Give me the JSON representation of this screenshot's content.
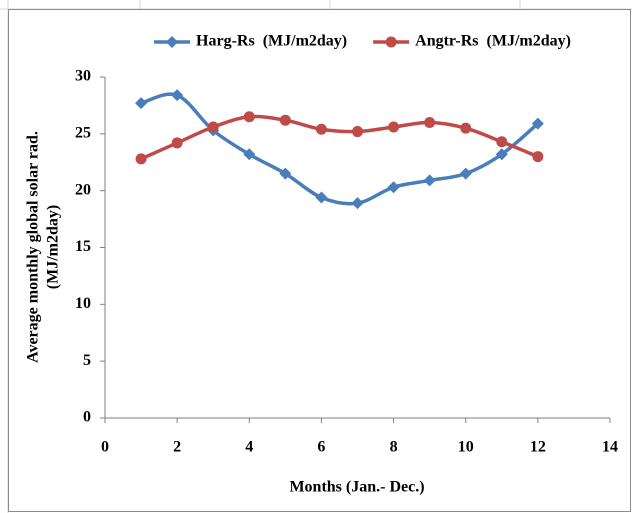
{
  "chart_data": {
    "type": "line",
    "smooth": true,
    "x_label": "Months (Jan.- Dec.)",
    "y_label": [
      "Average monthly global solar rad.",
      "(MJ/m2day)"
    ],
    "x": [
      1,
      2,
      3,
      4,
      5,
      6,
      7,
      8,
      9,
      10,
      11,
      12
    ],
    "series": [
      {
        "name": "Harg-Rs  (MJ/m2day)",
        "color": "#4a7ebb",
        "marker": "diamond",
        "values": [
          27.7,
          28.4,
          25.3,
          23.2,
          21.5,
          19.4,
          18.9,
          20.3,
          20.9,
          21.5,
          23.2,
          25.9
        ]
      },
      {
        "name": "Angtr-Rs  (MJ/m2day)",
        "color": "#be4b48",
        "marker": "circle",
        "values": [
          22.8,
          24.2,
          25.6,
          26.5,
          26.2,
          25.4,
          25.2,
          25.6,
          26.0,
          25.5,
          24.3,
          23.0
        ]
      }
    ],
    "xlim": [
      0,
      14
    ],
    "xticks": [
      0,
      2,
      4,
      6,
      8,
      10,
      12,
      14
    ],
    "ylim": [
      0,
      30
    ],
    "yticks": [
      0,
      5,
      10,
      15,
      20,
      25,
      30
    ],
    "grid": false,
    "legend": "top"
  }
}
